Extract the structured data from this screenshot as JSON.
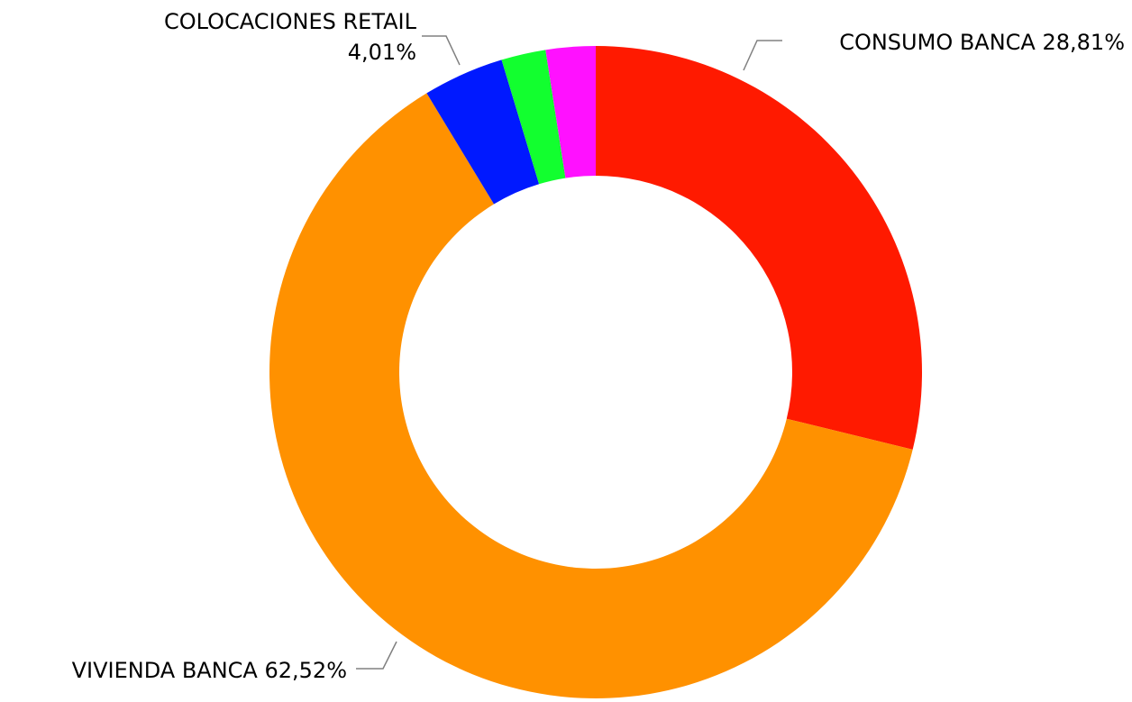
{
  "chart_data": {
    "type": "donut",
    "categories": [
      "CONSUMO BANCA",
      "VIVIENDA BANCA",
      "COLOCACIONES RETAIL",
      null,
      null
    ],
    "values": [
      28.81,
      62.52,
      4.01,
      2.2,
      2.46
    ],
    "value_labels": [
      "28,81%",
      "62,52%",
      "4,01%",
      null,
      null
    ],
    "colors": [
      "#ff1a00",
      "#ff9100",
      "#0019ff",
      "#12ff2f",
      "#ff11ff"
    ]
  }
}
